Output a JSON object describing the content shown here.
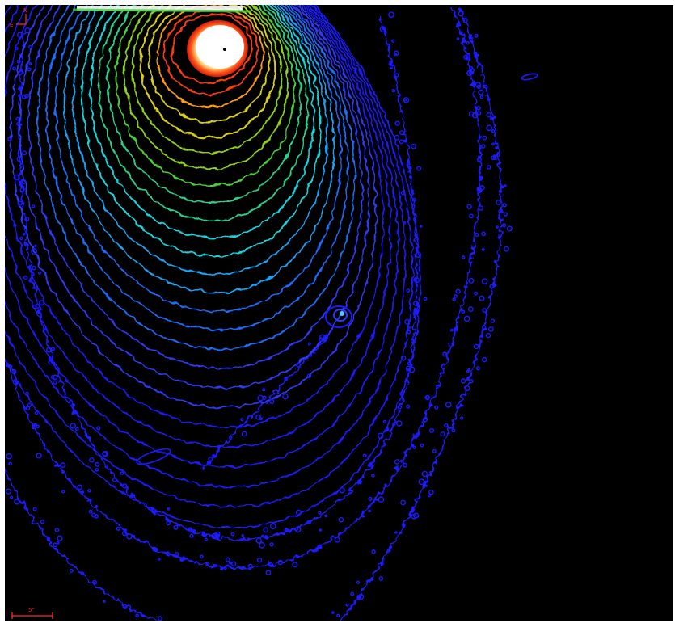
{
  "image": {
    "kind": "contour-map",
    "background": "#000000",
    "frame_color": "#ffffff",
    "contour_colors": [
      "#1a1aff",
      "#2d3bff",
      "#1f6cff",
      "#19a6ff",
      "#16d6e0",
      "#2bd28a",
      "#4ccf3a",
      "#8fd11f",
      "#d8d01a",
      "#ff9d12",
      "#ff3a12",
      "#ffffff"
    ]
  },
  "compass": {
    "north": "N",
    "east": "E",
    "color": "#ff2a2a"
  },
  "scale_bar": {
    "label": "5\"",
    "color": "#ff2a2a"
  }
}
